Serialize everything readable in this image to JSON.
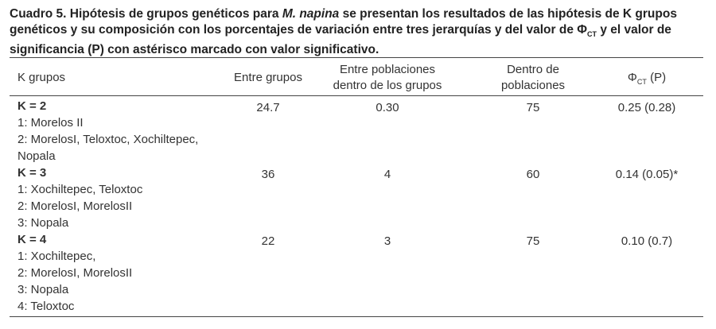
{
  "caption": {
    "lead": "Cuadro 5. Hipótesis de grupos genéticos para",
    "species": "M. napina",
    "middle": "se presentan los resultados de las hipótesis de K grupos genéticos y su composición con los porcentajes de variación entre tres jerarquías y del valor de",
    "symbol": "Φ",
    "subscript": "CT",
    "tail": "y el valor de significancia (P) con astérisco marcado con valor significativo."
  },
  "table": {
    "header": {
      "k": "K grupos",
      "entre_grupos": "Entre grupos",
      "entre_poblaciones": [
        "Entre poblaciones",
        "dentro de los grupos"
      ],
      "dentro": [
        "Dentro de",
        "poblaciones"
      ],
      "phi": {
        "symbol": "Φ",
        "subscript": "CT",
        "suffix": "(P)"
      }
    },
    "rows": [
      {
        "k": "K = 2",
        "members": [
          "1: Morelos II",
          "2: MorelosI, Teloxtoc, Xochiltepec,",
          "Nopala"
        ],
        "entre_grupos": "24.7",
        "entre_poblaciones": "0.30",
        "dentro": "75",
        "phi": "0.25 (0.28)"
      },
      {
        "k": "K = 3",
        "members": [
          "1: Xochiltepec, Teloxtoc",
          "2: MorelosI, MorelosII",
          "3: Nopala"
        ],
        "entre_grupos": "36",
        "entre_poblaciones": "4",
        "dentro": "60",
        "phi": "0.14 (0.05)*"
      },
      {
        "k": "K = 4",
        "members": [
          "1: Xochiltepec,",
          "2: MorelosI, MorelosII",
          "3: Nopala",
          "4: Teloxtoc"
        ],
        "entre_grupos": "22",
        "entre_poblaciones": "3",
        "dentro": "75",
        "phi": "0.10 (0.7)"
      }
    ]
  }
}
